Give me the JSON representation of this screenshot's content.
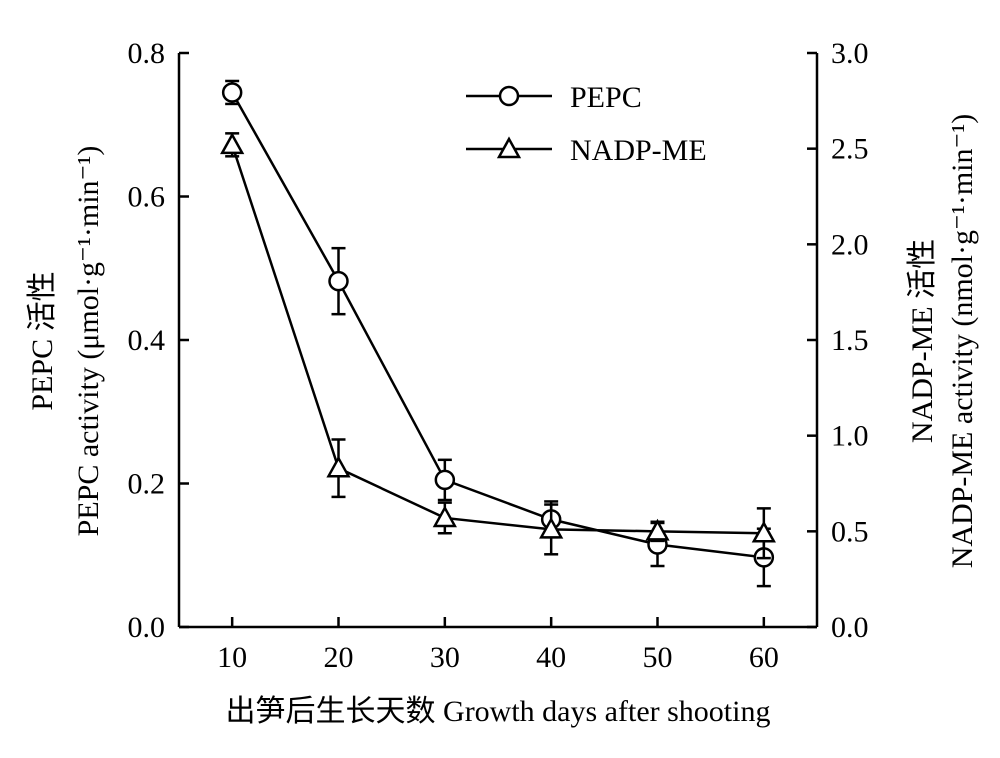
{
  "chart_data": {
    "type": "line",
    "x": [
      10,
      20,
      30,
      40,
      50,
      60
    ],
    "xlim": [
      5,
      65
    ],
    "xticks": [
      "10",
      "20",
      "30",
      "40",
      "50",
      "60"
    ],
    "xlabel": "出笋后生长天数 Growth days after shooting",
    "y_left": {
      "label_line1": "PEPC 活性",
      "label_line2": "PEPC activity (μmol·g⁻¹·min⁻¹)",
      "lim": [
        0.0,
        0.8
      ],
      "ticks": [
        "0.0",
        "0.2",
        "0.4",
        "0.6",
        "0.8"
      ]
    },
    "y_right": {
      "label_line1": "NADP-ME 活性",
      "label_line2": "NADP-ME activity (nmol·g⁻¹·min⁻¹)",
      "lim": [
        0.0,
        3.0
      ],
      "ticks": [
        "0.0",
        "0.5",
        "1.0",
        "1.5",
        "2.0",
        "2.5",
        "3.0"
      ]
    },
    "series": [
      {
        "name": "PEPC",
        "axis": "left",
        "marker": "circle",
        "values": [
          0.745,
          0.482,
          0.205,
          0.15,
          0.115,
          0.097
        ],
        "errors": [
          0.016,
          0.046,
          0.028,
          0.025,
          0.03,
          0.04
        ]
      },
      {
        "name": "NADP-ME",
        "axis": "right",
        "marker": "triangle",
        "values": [
          2.52,
          0.83,
          0.57,
          0.51,
          0.5,
          0.49
        ],
        "errors": [
          0.06,
          0.15,
          0.08,
          0.13,
          0.05,
          0.13
        ]
      }
    ],
    "legend_position": "top-right",
    "grid": false
  }
}
